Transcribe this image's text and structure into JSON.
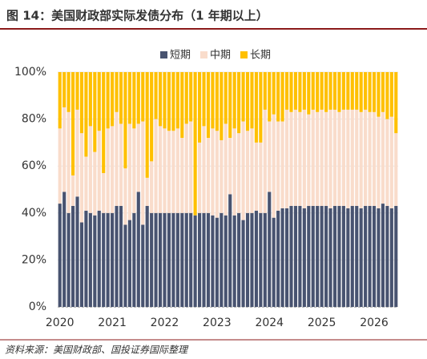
{
  "header": {
    "title": "图 14：美国财政部实际发债分布（1 年期以上）"
  },
  "chart_data": {
    "type": "stacked-bar",
    "categories": [
      "2020",
      null,
      null,
      null,
      null,
      null,
      null,
      null,
      null,
      null,
      null,
      null,
      "2021",
      null,
      null,
      null,
      null,
      null,
      null,
      null,
      null,
      null,
      null,
      null,
      "2022",
      null,
      null,
      null,
      null,
      null,
      null,
      null,
      null,
      null,
      null,
      null,
      "2023",
      null,
      null,
      null,
      null,
      null,
      null,
      null,
      null,
      null,
      null,
      null,
      "2024",
      null,
      null,
      null,
      null,
      null,
      null,
      null,
      null,
      null,
      null,
      null,
      "2025",
      null,
      null,
      null,
      null,
      null,
      null,
      null,
      null,
      null,
      null,
      null,
      "2026",
      null,
      null,
      null,
      null,
      null
    ],
    "series": [
      {
        "name": "短期",
        "color": "#485370",
        "values": [
          44,
          49,
          40,
          43,
          47,
          36,
          41,
          40,
          39,
          41,
          40,
          40,
          40,
          43,
          43,
          35,
          37,
          40,
          49,
          35,
          43,
          40,
          40,
          40,
          40,
          40,
          40,
          40,
          40,
          40,
          40,
          39,
          40,
          40,
          40,
          39,
          38,
          40,
          39,
          48,
          39,
          40,
          37,
          40,
          40,
          41,
          40,
          40,
          49,
          38,
          41,
          42,
          42,
          43,
          43,
          43,
          42,
          43,
          43,
          43,
          43,
          43,
          42,
          43,
          43,
          43,
          42,
          43,
          43,
          42,
          43,
          43,
          43,
          42,
          44,
          43,
          42,
          43
        ]
      },
      {
        "name": "中期",
        "color": "#f9dccb",
        "values": [
          32,
          36,
          43,
          13,
          37,
          38,
          23,
          37,
          27,
          34,
          17,
          36,
          37,
          40,
          35,
          24,
          41,
          36,
          29,
          44,
          12,
          22,
          40,
          37,
          36,
          35,
          35,
          36,
          32,
          38,
          39,
          0,
          30,
          37,
          32,
          37,
          37,
          31,
          39,
          24,
          37,
          34,
          42,
          35,
          36,
          29,
          30,
          44,
          30,
          44,
          38,
          37,
          42,
          40,
          41,
          40,
          42,
          39,
          41,
          40,
          41,
          40,
          42,
          41,
          40,
          41,
          42,
          41,
          41,
          41,
          41,
          40,
          40,
          39,
          39,
          37,
          39,
          31
        ]
      },
      {
        "name": "长期",
        "color": "#ffc000",
        "values": [
          24,
          15,
          17,
          44,
          16,
          26,
          36,
          23,
          34,
          25,
          43,
          24,
          23,
          17,
          22,
          41,
          22,
          24,
          22,
          21,
          45,
          38,
          20,
          23,
          24,
          25,
          25,
          24,
          28,
          22,
          21,
          61,
          30,
          23,
          28,
          24,
          25,
          29,
          22,
          28,
          24,
          26,
          21,
          25,
          24,
          30,
          30,
          16,
          21,
          18,
          21,
          21,
          16,
          17,
          16,
          17,
          16,
          18,
          16,
          17,
          16,
          17,
          16,
          16,
          17,
          16,
          16,
          16,
          16,
          17,
          16,
          17,
          17,
          19,
          17,
          20,
          19,
          26
        ]
      }
    ],
    "ylim": [
      0,
      100
    ],
    "yticks": [
      {
        "value": 0,
        "label": "0%"
      },
      {
        "value": 20,
        "label": "20%"
      },
      {
        "value": 40,
        "label": "40%"
      },
      {
        "value": 60,
        "label": "60%"
      },
      {
        "value": 80,
        "label": "80%"
      },
      {
        "value": 100,
        "label": "100%"
      }
    ],
    "grid": true
  },
  "footer": {
    "source": "资料来源：美国财政部、国投证券国际整理"
  }
}
